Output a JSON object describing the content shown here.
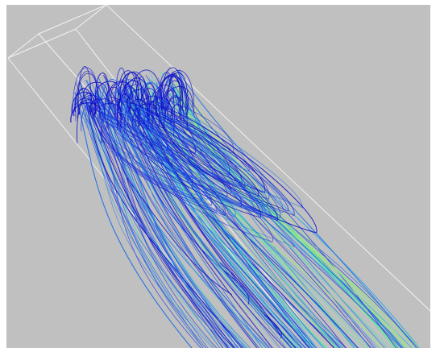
{
  "scene": {
    "background_color": "#c0c0c0",
    "frame_color": "#ffffff",
    "bounding_box_color": "#f2f2f2",
    "streamline_colors": [
      "#1010c8",
      "#1e2ee0",
      "#1f6fe6",
      "#22a6e8",
      "#2fd0d8",
      "#56e6a8",
      "#8af07a"
    ],
    "low_velocity_color": "#1010c8",
    "high_velocity_color": "#8af07a"
  }
}
